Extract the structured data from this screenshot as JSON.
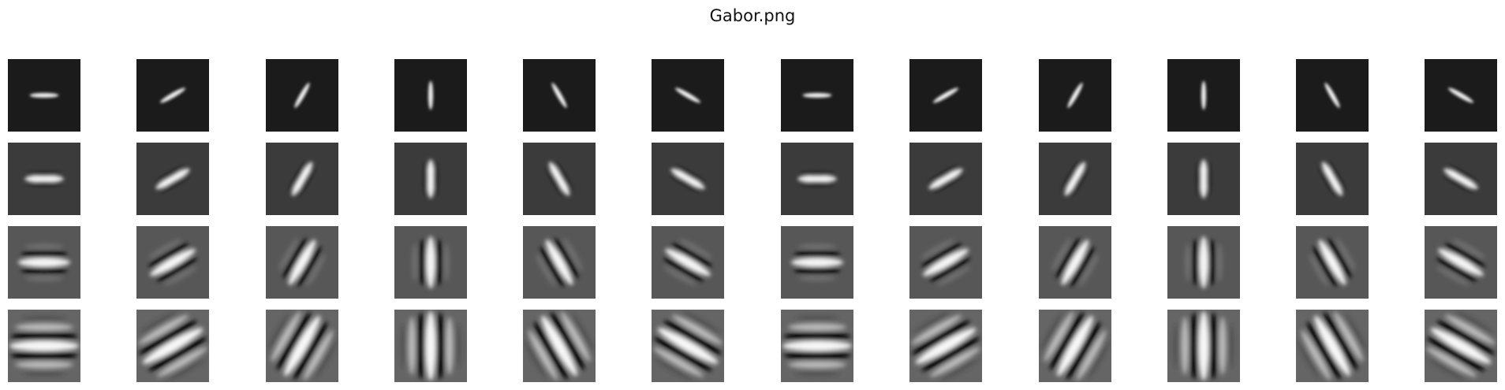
{
  "figure": {
    "title": "Gabor.png"
  },
  "filter_bank": {
    "rows": 4,
    "cols": 12,
    "orientations_deg": [
      0,
      30,
      60,
      90,
      120,
      150,
      0,
      30,
      60,
      90,
      120,
      150
    ],
    "row_backgrounds": [
      "#1b1b1b",
      "#3b3b3b",
      "#575757",
      "#656565"
    ]
  }
}
